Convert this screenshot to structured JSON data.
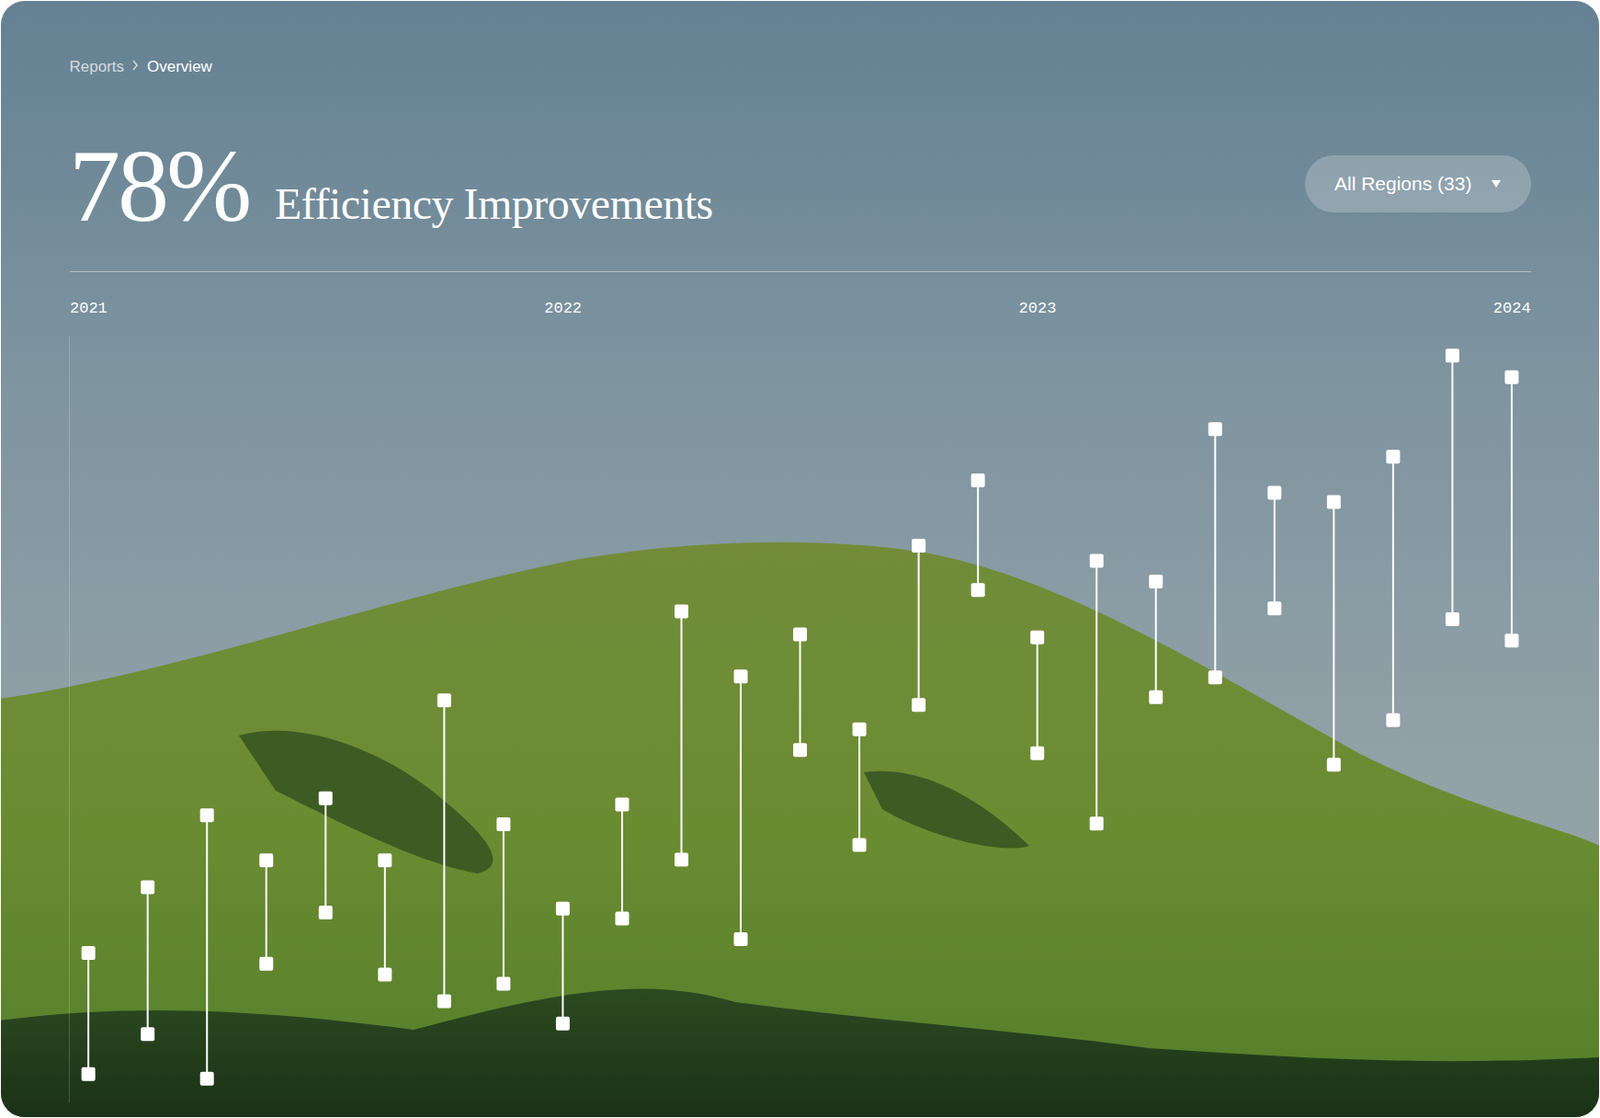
{
  "page": {
    "breadcrumb": [
      "Reports",
      "Overview"
    ],
    "kpi_value": 78,
    "kpi_label": "78%",
    "filter": "All Regions (33)"
  },
  "chart_data": {
    "type": "range",
    "title": "Efficiency Improvements",
    "color": "#ffffff",
    "x": [
      2021.04,
      2021.165,
      2021.29,
      2021.415,
      2021.54,
      2021.665,
      2021.79,
      2021.915,
      2022.04,
      2022.165,
      2022.29,
      2022.415,
      2022.54,
      2022.665,
      2022.79,
      2022.915,
      2023.04,
      2023.165,
      2023.29,
      2023.415,
      2023.54,
      2023.665,
      2023.79,
      2023.915,
      2024.04
    ],
    "values": [
      19.5,
      28.1,
      37.5,
      31.6,
      39.7,
      31.6,
      52.5,
      36.3,
      25.3,
      38.9,
      64.1,
      55.6,
      61.1,
      48.7,
      72.7,
      81.2,
      60.7,
      70.7,
      68.0,
      87.9,
      79.6,
      78.4,
      84.3,
      97.5,
      94.7
    ],
    "lows": [
      3.7,
      8.9,
      3.1,
      18.1,
      24.8,
      16.7,
      13.2,
      15.5,
      10.3,
      24.0,
      31.7,
      21.3,
      46.0,
      33.6,
      51.9,
      66.9,
      45.6,
      36.4,
      52.9,
      55.5,
      64.5,
      44.1,
      49.9,
      63.1,
      60.3
    ],
    "xlim": [
      2021,
      2024.08
    ],
    "xticks": [
      2021,
      2022,
      2023,
      2024
    ],
    "ylim": [
      0,
      100
    ],
    "tick_labels": "x",
    "grid": false,
    "marker": "square"
  }
}
